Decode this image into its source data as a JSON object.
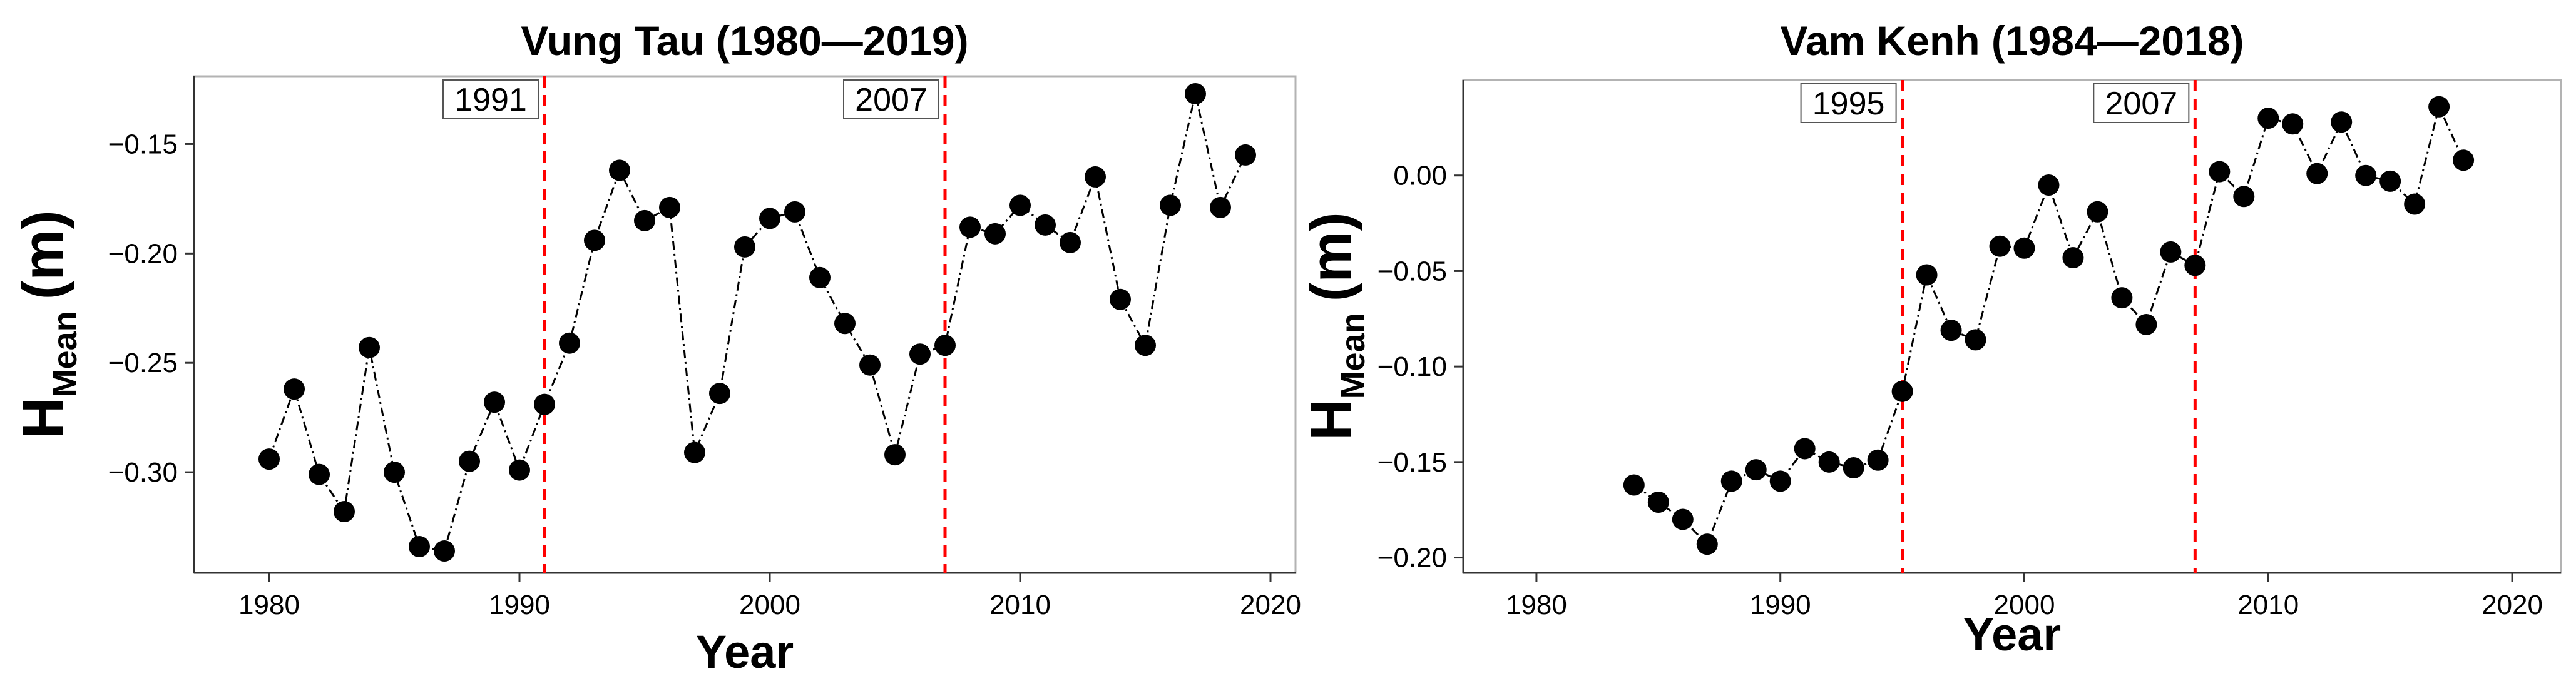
{
  "chart_data": [
    {
      "type": "line",
      "title": "Vung Tau (1980—2019)",
      "xlabel": "Year",
      "ylabel": {
        "main": "H",
        "sub": "Mean",
        "unit": "(m)"
      },
      "xlim": [
        1977,
        2021
      ],
      "ylim": [
        -0.346,
        -0.119
      ],
      "xticks": [
        1980,
        1990,
        2000,
        2010,
        2020
      ],
      "yticks": [
        -0.3,
        -0.25,
        -0.2,
        -0.15
      ],
      "ytick_labels": [
        "−0.30",
        "−0.25",
        "−0.20",
        "−0.15"
      ],
      "grid": false,
      "marker": "filled-circle",
      "line_style": "dash-dot",
      "colors": {
        "points": "#000000",
        "line": "#000000",
        "breakpoints": "#ff0000"
      },
      "breakpoints": [
        {
          "x": 1991,
          "label": "1991"
        },
        {
          "x": 2007,
          "label": "2007"
        }
      ],
      "series": [
        {
          "x": [
            1980,
            1981,
            1982,
            1983,
            1984,
            1985,
            1986,
            1987,
            1988,
            1989,
            1990,
            1991,
            1992,
            1993,
            1994,
            1995,
            1996,
            1997,
            1998,
            1999,
            2000,
            2001,
            2002,
            2003,
            2004,
            2005,
            2006,
            2007,
            2008,
            2009,
            2010,
            2011,
            2012,
            2013,
            2014,
            2015,
            2016,
            2017,
            2018,
            2019
          ],
          "y": [
            -0.294,
            -0.262,
            -0.301,
            -0.318,
            -0.243,
            -0.3,
            -0.334,
            -0.336,
            -0.295,
            -0.268,
            -0.299,
            -0.269,
            -0.241,
            -0.194,
            -0.162,
            -0.185,
            -0.179,
            -0.291,
            -0.264,
            -0.197,
            -0.184,
            -0.181,
            -0.211,
            -0.232,
            -0.251,
            -0.292,
            -0.246,
            -0.242,
            -0.188,
            -0.191,
            -0.178,
            -0.187,
            -0.195,
            -0.165,
            -0.221,
            -0.242,
            -0.178,
            -0.127,
            -0.179,
            -0.155
          ]
        }
      ]
    },
    {
      "type": "line",
      "title": "Vam Kenh (1984—2018)",
      "xlabel": "Year",
      "ylabel": {
        "main": "H",
        "sub": "Mean",
        "unit": "(m)"
      },
      "xlim": [
        1977,
        2022
      ],
      "ylim": [
        -0.208,
        0.05
      ],
      "xticks": [
        1980,
        1990,
        2000,
        2010,
        2020
      ],
      "yticks": [
        -0.2,
        -0.15,
        -0.1,
        -0.05,
        0.0
      ],
      "ytick_labels": [
        "−0.20",
        "−0.15",
        "−0.10",
        "−0.05",
        "0.00"
      ],
      "grid": false,
      "marker": "filled-circle",
      "line_style": "dash-dot",
      "colors": {
        "points": "#000000",
        "line": "#000000",
        "breakpoints": "#ff0000"
      },
      "breakpoints": [
        {
          "x": 1995,
          "label": "1995"
        },
        {
          "x": 2007,
          "label": "2007"
        }
      ],
      "series": [
        {
          "x": [
            1984,
            1985,
            1986,
            1987,
            1988,
            1989,
            1990,
            1991,
            1992,
            1993,
            1994,
            1995,
            1996,
            1997,
            1998,
            1999,
            2000,
            2001,
            2002,
            2003,
            2004,
            2005,
            2006,
            2007,
            2008,
            2009,
            2010,
            2011,
            2012,
            2013,
            2014,
            2015,
            2016,
            2017,
            2018
          ],
          "y": [
            -0.162,
            -0.171,
            -0.18,
            -0.193,
            -0.16,
            -0.154,
            -0.16,
            -0.143,
            -0.15,
            -0.153,
            -0.149,
            -0.113,
            -0.052,
            -0.081,
            -0.086,
            -0.037,
            -0.038,
            -0.005,
            -0.043,
            -0.019,
            -0.064,
            -0.078,
            -0.04,
            -0.047,
            0.002,
            -0.011,
            0.03,
            0.027,
            0.001,
            0.028,
            0.0,
            -0.003,
            -0.015,
            0.036,
            0.008
          ]
        }
      ]
    }
  ]
}
